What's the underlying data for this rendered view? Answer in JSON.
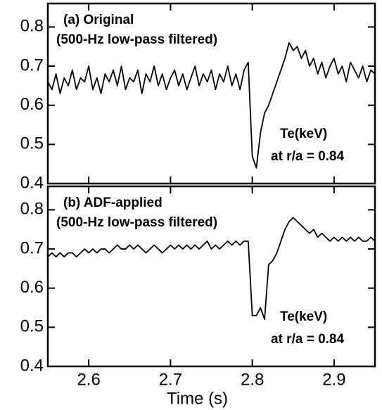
{
  "chart_data": [
    {
      "type": "line",
      "title": "(a) Original",
      "subtitle": "(500-Hz low-pass filtered)",
      "annotations": [
        "Te(keV)",
        "at r/a = 0.84"
      ],
      "x": [
        2.55,
        2.555,
        2.56,
        2.565,
        2.57,
        2.575,
        2.58,
        2.585,
        2.59,
        2.595,
        2.6,
        2.605,
        2.61,
        2.615,
        2.62,
        2.625,
        2.63,
        2.635,
        2.64,
        2.645,
        2.65,
        2.655,
        2.66,
        2.665,
        2.67,
        2.675,
        2.68,
        2.685,
        2.69,
        2.695,
        2.7,
        2.705,
        2.71,
        2.715,
        2.72,
        2.725,
        2.73,
        2.735,
        2.74,
        2.745,
        2.75,
        2.755,
        2.76,
        2.765,
        2.77,
        2.775,
        2.78,
        2.785,
        2.79,
        2.795,
        2.8,
        2.805,
        2.81,
        2.815,
        2.82,
        2.825,
        2.83,
        2.835,
        2.84,
        2.845,
        2.85,
        2.855,
        2.86,
        2.865,
        2.87,
        2.875,
        2.88,
        2.885,
        2.89,
        2.895,
        2.9,
        2.905,
        2.91,
        2.915,
        2.92,
        2.925,
        2.93,
        2.935,
        2.94,
        2.945,
        2.95
      ],
      "values": [
        0.66,
        0.64,
        0.68,
        0.63,
        0.67,
        0.65,
        0.69,
        0.64,
        0.67,
        0.66,
        0.7,
        0.64,
        0.67,
        0.63,
        0.68,
        0.66,
        0.69,
        0.65,
        0.7,
        0.64,
        0.67,
        0.66,
        0.69,
        0.63,
        0.68,
        0.66,
        0.7,
        0.65,
        0.68,
        0.64,
        0.67,
        0.69,
        0.65,
        0.68,
        0.64,
        0.67,
        0.7,
        0.65,
        0.68,
        0.66,
        0.69,
        0.64,
        0.68,
        0.66,
        0.7,
        0.65,
        0.68,
        0.64,
        0.69,
        0.71,
        0.47,
        0.44,
        0.53,
        0.58,
        0.6,
        0.63,
        0.66,
        0.69,
        0.72,
        0.76,
        0.74,
        0.75,
        0.72,
        0.74,
        0.7,
        0.72,
        0.68,
        0.71,
        0.67,
        0.7,
        0.72,
        0.68,
        0.7,
        0.66,
        0.71,
        0.69,
        0.67,
        0.7,
        0.66,
        0.69,
        0.68
      ],
      "color": "#000000",
      "xlim": [
        2.55,
        2.95
      ],
      "ylim": [
        0.4,
        0.86
      ],
      "yticks": [
        0.4,
        0.5,
        0.6,
        0.7,
        0.8
      ]
    },
    {
      "type": "line",
      "title": "(b) ADF-applied",
      "subtitle": "(500-Hz low-pass filtered)",
      "annotations": [
        "Te(keV)",
        "at r/a = 0.84"
      ],
      "xlabel": "Time (s)",
      "x": [
        2.55,
        2.555,
        2.56,
        2.565,
        2.57,
        2.575,
        2.58,
        2.585,
        2.59,
        2.595,
        2.6,
        2.605,
        2.61,
        2.615,
        2.62,
        2.625,
        2.63,
        2.635,
        2.64,
        2.645,
        2.65,
        2.655,
        2.66,
        2.665,
        2.67,
        2.675,
        2.68,
        2.685,
        2.69,
        2.695,
        2.7,
        2.705,
        2.71,
        2.715,
        2.72,
        2.725,
        2.73,
        2.735,
        2.74,
        2.745,
        2.75,
        2.755,
        2.76,
        2.765,
        2.77,
        2.775,
        2.78,
        2.785,
        2.79,
        2.795,
        2.8,
        2.805,
        2.81,
        2.815,
        2.82,
        2.825,
        2.83,
        2.835,
        2.84,
        2.845,
        2.85,
        2.855,
        2.86,
        2.865,
        2.87,
        2.875,
        2.88,
        2.885,
        2.89,
        2.895,
        2.9,
        2.905,
        2.91,
        2.915,
        2.92,
        2.925,
        2.93,
        2.935,
        2.94,
        2.945,
        2.95
      ],
      "values": [
        0.68,
        0.69,
        0.68,
        0.69,
        0.68,
        0.69,
        0.69,
        0.68,
        0.69,
        0.7,
        0.69,
        0.7,
        0.69,
        0.7,
        0.7,
        0.69,
        0.7,
        0.71,
        0.7,
        0.7,
        0.71,
        0.7,
        0.71,
        0.7,
        0.69,
        0.7,
        0.71,
        0.7,
        0.69,
        0.7,
        0.71,
        0.7,
        0.71,
        0.7,
        0.71,
        0.7,
        0.71,
        0.7,
        0.71,
        0.72,
        0.7,
        0.71,
        0.7,
        0.71,
        0.72,
        0.71,
        0.72,
        0.71,
        0.72,
        0.72,
        0.53,
        0.53,
        0.55,
        0.52,
        0.66,
        0.67,
        0.69,
        0.72,
        0.75,
        0.77,
        0.78,
        0.77,
        0.76,
        0.75,
        0.74,
        0.75,
        0.73,
        0.74,
        0.73,
        0.72,
        0.73,
        0.72,
        0.73,
        0.72,
        0.73,
        0.72,
        0.73,
        0.72,
        0.72,
        0.73,
        0.72
      ],
      "color": "#000000",
      "xlim": [
        2.55,
        2.95
      ],
      "ylim": [
        0.4,
        0.86
      ],
      "yticks": [
        0.4,
        0.5,
        0.6,
        0.7,
        0.8
      ],
      "xticks": [
        2.6,
        2.7,
        2.8,
        2.9
      ]
    }
  ]
}
